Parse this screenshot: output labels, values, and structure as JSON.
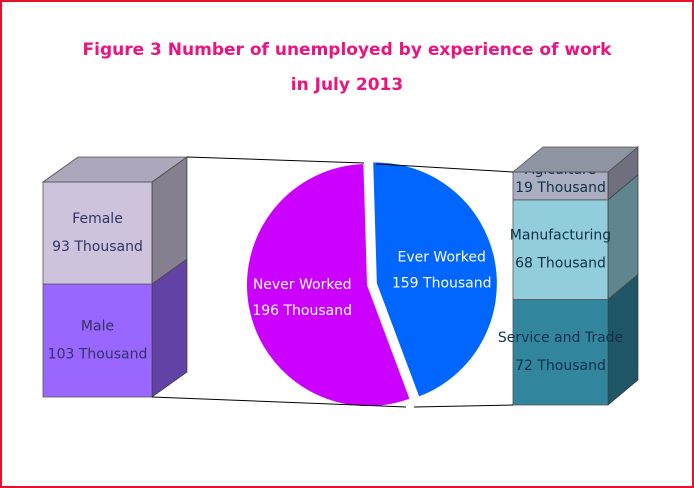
{
  "chart_data": [
    {
      "type": "pie",
      "title": [
        "Figure 3 Number of unemployed by experience of work",
        "in July 2013"
      ],
      "categories": [
        "Never Worked",
        "Ever Worked"
      ],
      "values": [
        196,
        159
      ],
      "value_labels": [
        "196 Thousand",
        "159 Thousand"
      ],
      "colors": [
        "#cc00ff",
        "#0066ff"
      ]
    },
    {
      "type": "stacked_bar",
      "categories": [
        "Female",
        "Male"
      ],
      "values": [
        93,
        103
      ],
      "value_labels": [
        "93 Thousand",
        "103 Thousand"
      ],
      "colors": [
        "#cdc3dc",
        "#9966ff"
      ]
    },
    {
      "type": "stacked_bar",
      "categories": [
        "Agiculture",
        "Manufacturing",
        "Service and Trade"
      ],
      "values": [
        19,
        68,
        72
      ],
      "value_labels": [
        "19 Thousand",
        "68 Thousand",
        "72 Thousand"
      ],
      "colors": [
        "#a9aec0",
        "#92cddc",
        "#31859c"
      ]
    }
  ]
}
